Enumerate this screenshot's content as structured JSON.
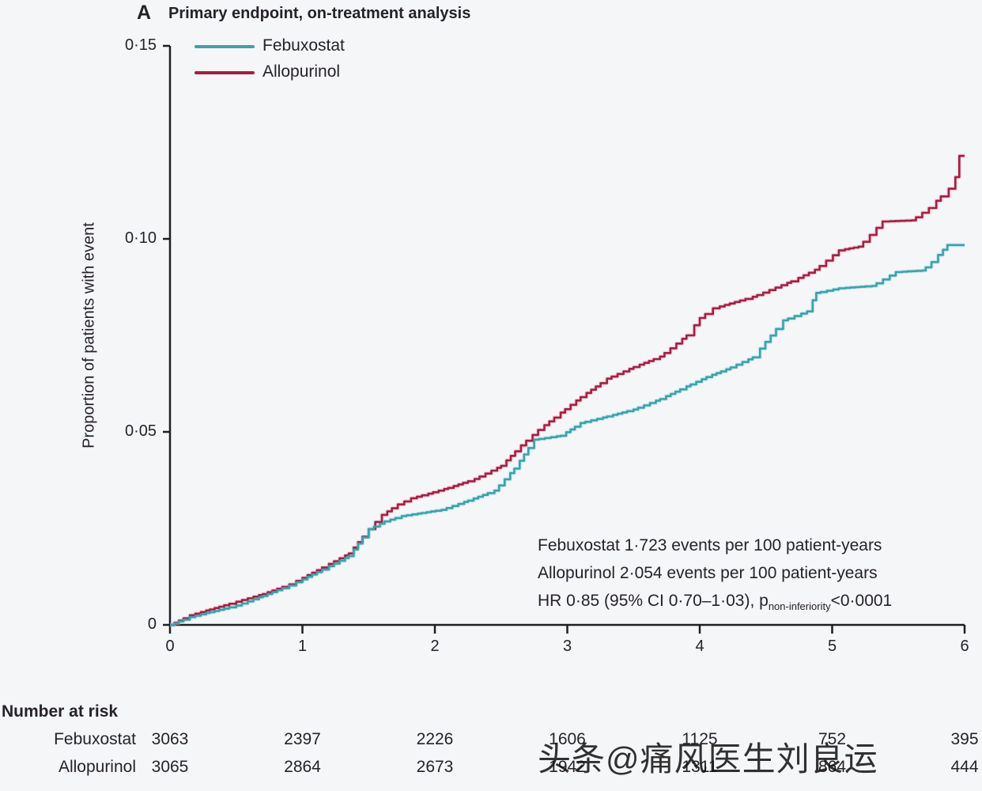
{
  "panel": {
    "letter": "A",
    "title": "Primary endpoint, on-treatment analysis"
  },
  "legend": [
    {
      "label": "Febuxostat",
      "color": "#3aa2ac"
    },
    {
      "label": "Allopurinol",
      "color": "#a02240"
    }
  ],
  "annotation": {
    "line1": "Febuxostat 1·723 events per 100 patient-years",
    "line2": "Allopurinol 2·054 events per 100 patient-years",
    "line3_prefix": "HR 0·85 (95% CI 0·70–1·03), p",
    "line3_sub": "non-inferiority",
    "line3_suffix": "<0·0001"
  },
  "chart_data": {
    "type": "line",
    "step": true,
    "title": "Primary endpoint, on-treatment analysis",
    "xlabel": "",
    "ylabel": "Proportion of patients with event",
    "xlim": [
      0,
      6
    ],
    "ylim": [
      0,
      0.15
    ],
    "x_tick_values": [
      0,
      1,
      2,
      3,
      4,
      5,
      6
    ],
    "x_ticks": [
      "0",
      "1",
      "2",
      "3",
      "4",
      "5",
      "6"
    ],
    "y_tick_values": [
      0,
      0.05,
      0.1,
      0.15
    ],
    "y_ticks": [
      "0",
      "0·05",
      "0·10",
      "0·15"
    ],
    "legend_position": "top-left",
    "grid": false,
    "series": [
      {
        "name": "Allopurinol",
        "color": "#a02240",
        "halo": "#ef8fb4",
        "points": [
          [
            0,
            0
          ],
          [
            0.15,
            0.0025
          ],
          [
            0.3,
            0.004
          ],
          [
            0.5,
            0.006
          ],
          [
            0.7,
            0.008
          ],
          [
            0.9,
            0.0105
          ],
          [
            1.0,
            0.0122
          ],
          [
            1.2,
            0.0158
          ],
          [
            1.35,
            0.0185
          ],
          [
            1.5,
            0.0248
          ],
          [
            1.6,
            0.0285
          ],
          [
            1.72,
            0.0312
          ],
          [
            1.82,
            0.0328
          ],
          [
            1.95,
            0.034
          ],
          [
            2.1,
            0.0355
          ],
          [
            2.3,
            0.0378
          ],
          [
            2.5,
            0.0412
          ],
          [
            2.65,
            0.0465
          ],
          [
            2.78,
            0.0505
          ],
          [
            2.95,
            0.055
          ],
          [
            3.1,
            0.059
          ],
          [
            3.3,
            0.0638
          ],
          [
            3.5,
            0.0668
          ],
          [
            3.7,
            0.0695
          ],
          [
            3.9,
            0.075
          ],
          [
            4.0,
            0.0795
          ],
          [
            4.1,
            0.082
          ],
          [
            4.4,
            0.085
          ],
          [
            4.69,
            0.089
          ],
          [
            4.87,
            0.092
          ],
          [
            5.05,
            0.097
          ],
          [
            5.2,
            0.098
          ],
          [
            5.38,
            0.1045
          ],
          [
            5.6,
            0.1048
          ],
          [
            5.73,
            0.108
          ],
          [
            5.82,
            0.111
          ],
          [
            5.88,
            0.113
          ],
          [
            5.93,
            0.116
          ],
          [
            5.96,
            0.1215
          ],
          [
            6.0,
            0.1215
          ]
        ]
      },
      {
        "name": "Febuxostat",
        "color": "#3aa2ac",
        "halo": "#8ed2d9",
        "points": [
          [
            0,
            0
          ],
          [
            0.15,
            0.002
          ],
          [
            0.3,
            0.0033
          ],
          [
            0.5,
            0.005
          ],
          [
            0.7,
            0.0075
          ],
          [
            0.9,
            0.0102
          ],
          [
            1.0,
            0.0118
          ],
          [
            1.2,
            0.0152
          ],
          [
            1.35,
            0.0178
          ],
          [
            1.5,
            0.0248
          ],
          [
            1.62,
            0.0268
          ],
          [
            1.75,
            0.0282
          ],
          [
            1.9,
            0.029
          ],
          [
            2.05,
            0.0298
          ],
          [
            2.25,
            0.0322
          ],
          [
            2.45,
            0.0348
          ],
          [
            2.6,
            0.0405
          ],
          [
            2.75,
            0.048
          ],
          [
            2.95,
            0.049
          ],
          [
            3.1,
            0.0523
          ],
          [
            3.3,
            0.054
          ],
          [
            3.5,
            0.0558
          ],
          [
            3.7,
            0.0585
          ],
          [
            3.9,
            0.0618
          ],
          [
            4.05,
            0.0642
          ],
          [
            4.2,
            0.0662
          ],
          [
            4.4,
            0.0693
          ],
          [
            4.63,
            0.0789
          ],
          [
            4.81,
            0.0812
          ],
          [
            4.88,
            0.086
          ],
          [
            5.05,
            0.0872
          ],
          [
            5.3,
            0.0878
          ],
          [
            5.48,
            0.0914
          ],
          [
            5.68,
            0.0918
          ],
          [
            5.75,
            0.094
          ],
          [
            5.87,
            0.0984
          ],
          [
            6.0,
            0.0984
          ]
        ]
      }
    ]
  },
  "risk_table": {
    "heading": "Number at risk",
    "rows": [
      {
        "label": "Febuxostat",
        "values": [
          "3063",
          "2397",
          "2226",
          "1606",
          "1125",
          "752",
          "395"
        ]
      },
      {
        "label": "Allopurinol",
        "values": [
          "3065",
          "2864",
          "2673",
          "1942",
          "1311",
          "864",
          "444"
        ]
      }
    ]
  },
  "watermark": "头条@痛风医生刘良运",
  "colors": {
    "febuxostat": "#3aa2ac",
    "allopurinol": "#a02240",
    "axis": "#1f1f22",
    "text": "#26222a",
    "background": "#f5f6f8"
  }
}
